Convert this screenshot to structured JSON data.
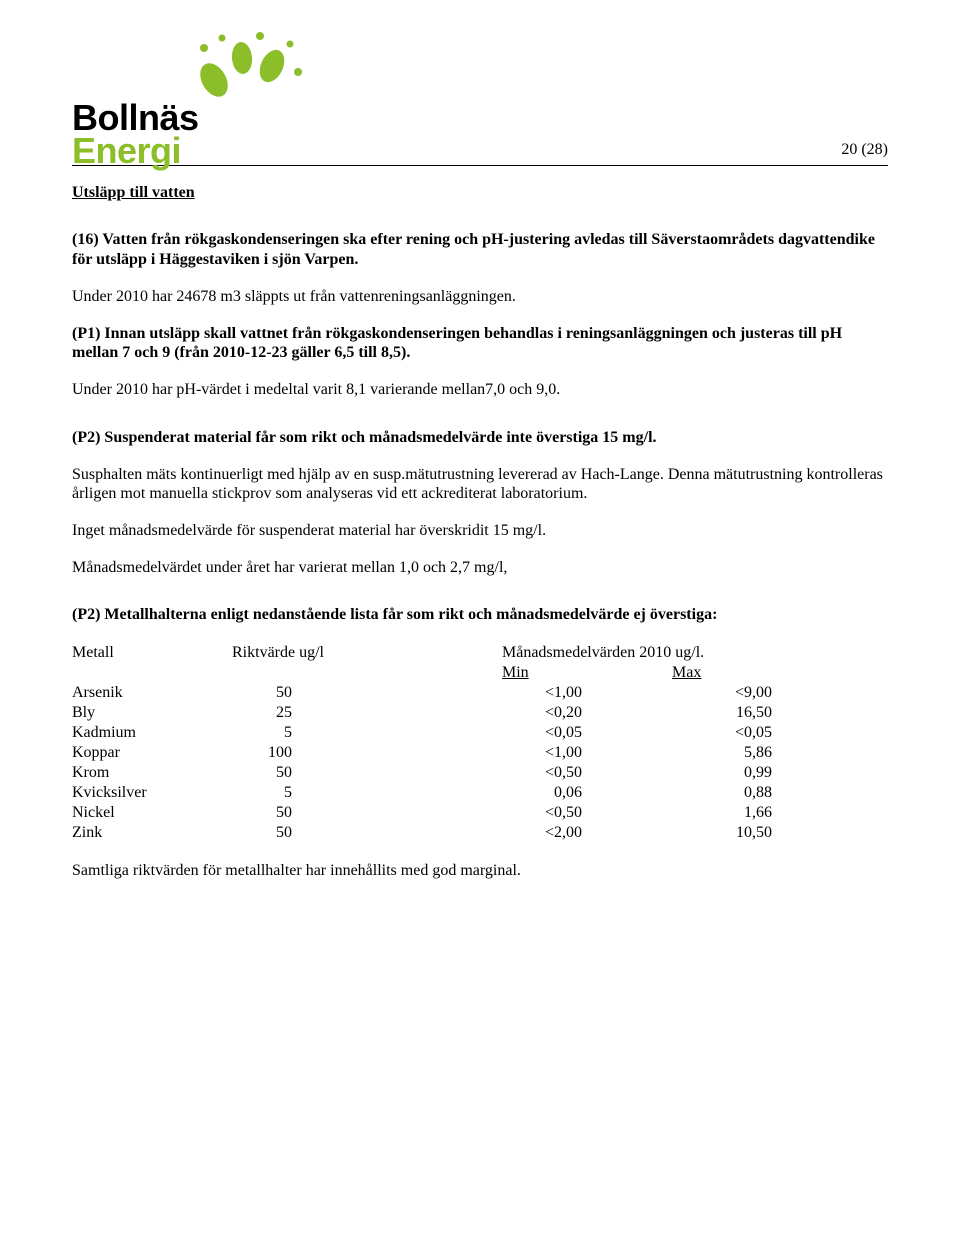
{
  "brand": {
    "line1": "Bollnäs",
    "line2": "Energi"
  },
  "pageNumber": "20 (28)",
  "section_title": "Utsläpp till vatten",
  "p16_bold": "(16) Vatten från rökgaskondenseringen ska efter rening och pH-justering avledas till Säverstaområdets dagvattendike för utsläpp i Häggestaviken i sjön Varpen.",
  "p16_body": "Under 2010 har 24678 m3 släppts ut från vattenreningsanläggningen.",
  "p1_bold": "(P1) Innan utsläpp skall vattnet från rökgaskondenseringen behandlas i reningsanläggningen och justeras till pH mellan 7 och 9 (från 2010-12-23 gäller 6,5 till 8,5).",
  "p1_body": "Under 2010 har pH-värdet i medeltal varit 8,1 varierande mellan7,0 och 9,0.",
  "p2a_bold": "(P2) Suspenderat material får som rikt och månadsmedelvärde inte överstiga 15 mg/l.",
  "p2a_body1": "Susphalten mäts kontinuerligt med hjälp av en susp.mätutrustning levererad av Hach-Lange. Denna mätutrustning kontrolleras årligen mot manuella stickprov som analyseras vid ett ackrediterat laboratorium.",
  "p2a_body2": "Inget månadsmedelvärde för suspenderat material har överskridit 15 mg/l.",
  "p2a_body3": "Månadsmedelvärdet under året har varierat mellan 1,0 och 2,7 mg/l,",
  "p2b_bold": "(P2) Metallhalterna enligt nedanstående lista får som rikt och månadsmedelvärde ej överstiga:",
  "metal_table": {
    "header": {
      "c1": "Metall",
      "c2": "Riktvärde ug/l",
      "c34": "Månadsmedelvärden 2010  ug/l.",
      "min": "Min",
      "max": "Max"
    },
    "rows": [
      {
        "name": "Arsenik",
        "rikt": "50",
        "min": "<1,00",
        "max": "<9,00"
      },
      {
        "name": "Bly",
        "rikt": "25",
        "min": "<0,20",
        "max": "16,50"
      },
      {
        "name": "Kadmium",
        "rikt": "5",
        "min": "<0,05",
        "max": "<0,05"
      },
      {
        "name": "Koppar",
        "rikt": "100",
        "min": "<1,00",
        "max": "5,86"
      },
      {
        "name": "Krom",
        "rikt": "50",
        "min": "<0,50",
        "max": "0,99"
      },
      {
        "name": "Kvicksilver",
        "rikt": "5",
        "min": "0,06",
        "max": "0,88"
      },
      {
        "name": "Nickel",
        "rikt": "50",
        "min": "<0,50",
        "max": "1,66"
      },
      {
        "name": "Zink",
        "rikt": "50",
        "min": "<2,00",
        "max": "10,50"
      }
    ]
  },
  "closing": "Samtliga riktvärden för metallhalter har innehållits med god marginal."
}
